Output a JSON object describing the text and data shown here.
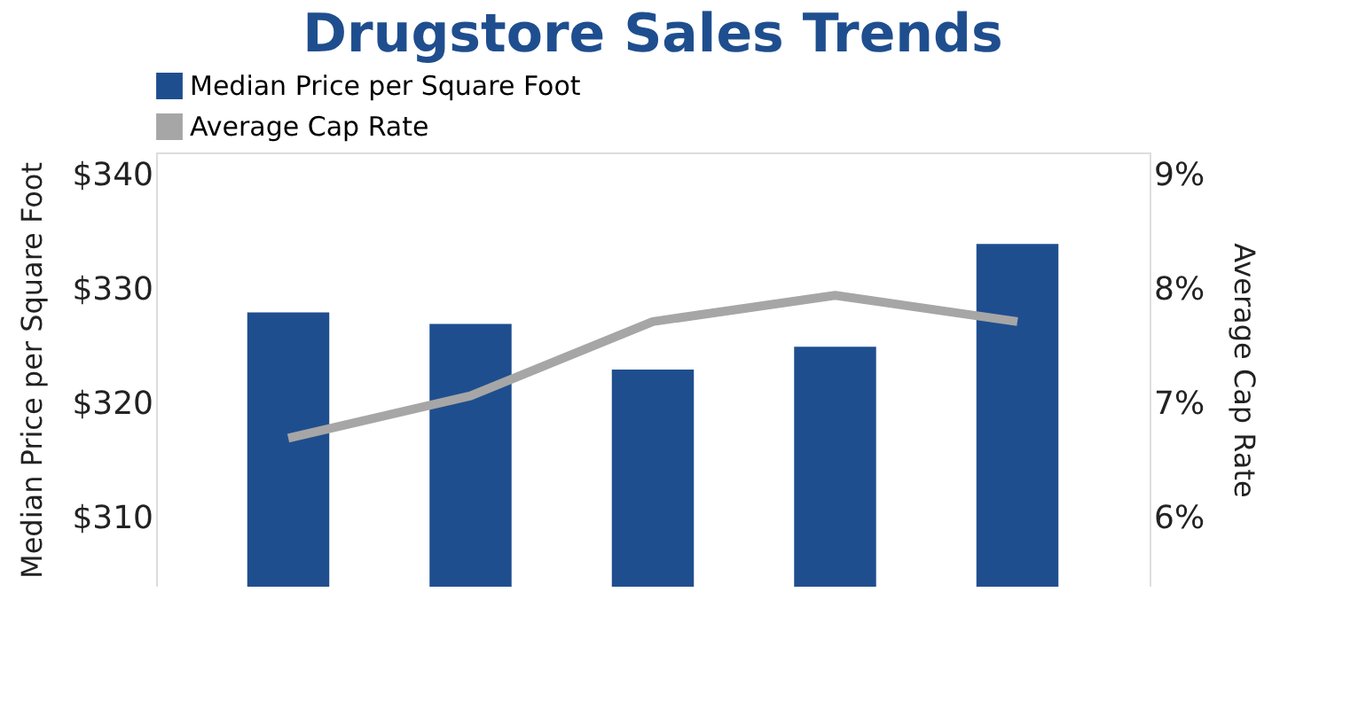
{
  "chart_data": {
    "type": "bar",
    "title": "Drugstore Sales Trends",
    "categories": [
      null,
      null,
      null,
      null,
      null
    ],
    "series": [
      {
        "name": "Median Price per Square Foot",
        "color": "#1f4e8f",
        "values": [
          328,
          327,
          323,
          325,
          334
        ]
      },
      {
        "name": "Average Cap Rate",
        "type": "line",
        "axis": "y2",
        "color": "#a6a6a6",
        "values": [
          6.7,
          7.07,
          7.72,
          7.95,
          7.72
        ]
      }
    ],
    "ylabel": "Median Price per Square Foot",
    "y2label": "Average Cap Rate",
    "ylim": [
      304,
      342
    ],
    "yticks": [
      {
        "value": 310,
        "label": "$310"
      },
      {
        "value": 320,
        "label": "$320"
      },
      {
        "value": 330,
        "label": "$330"
      },
      {
        "value": 340,
        "label": "$340"
      }
    ],
    "y2lim": [
      5.4,
      9.2
    ],
    "y2ticks": [
      {
        "value": 6,
        "label": "6%"
      },
      {
        "value": 7,
        "label": "7%"
      },
      {
        "value": 8,
        "label": "8%"
      },
      {
        "value": 9,
        "label": "9%"
      }
    ],
    "grid": false,
    "legend": "top",
    "marker": "none",
    "line_style": "solid"
  }
}
